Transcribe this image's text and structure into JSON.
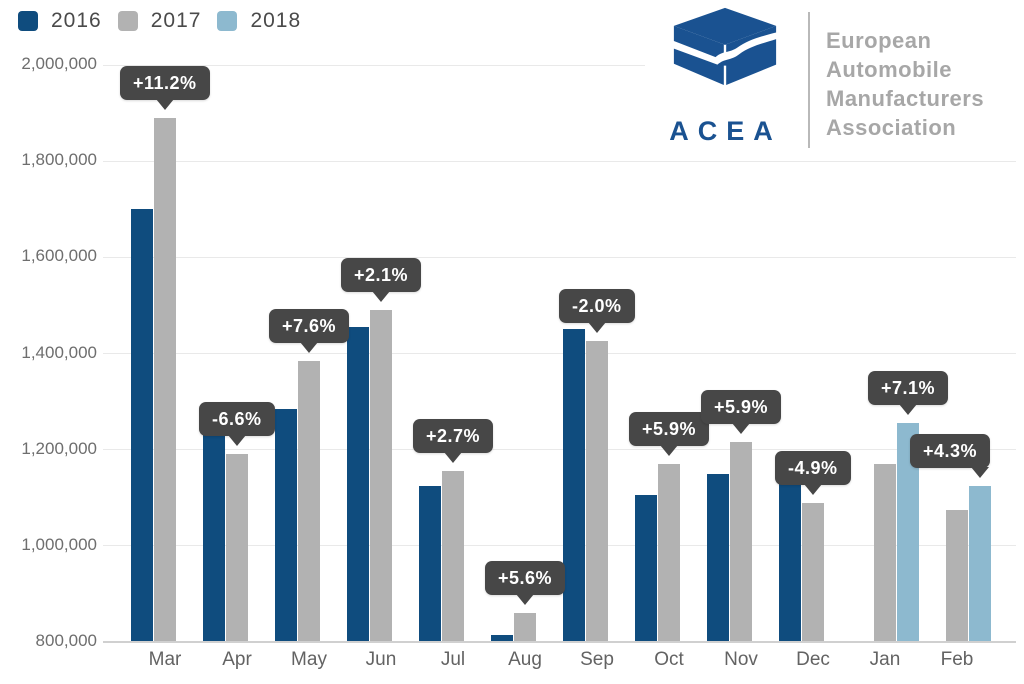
{
  "legend": {
    "items": [
      {
        "label": "2016",
        "color": "#0f4c7e"
      },
      {
        "label": "2017",
        "color": "#b2b2b2"
      },
      {
        "label": "2018",
        "color": "#8db9cf"
      }
    ]
  },
  "logo": {
    "acronym": "ACEA",
    "org_lines": [
      "European",
      "Automobile",
      "Manufacturers",
      "Association"
    ],
    "brand_color": "#1a5291",
    "text_color": "#a7a7a7"
  },
  "colors": {
    "bubble_bg": "#474747",
    "bubble_text": "#ffffff",
    "gridline": "#e9e9e9",
    "axis_line": "#d0d0d0",
    "tick_text": "#6e6e6e"
  },
  "chart_data": {
    "type": "bar",
    "categories": [
      "Mar",
      "Apr",
      "May",
      "Jun",
      "Jul",
      "Aug",
      "Sep",
      "Oct",
      "Nov",
      "Dec",
      "Jan",
      "Feb"
    ],
    "series": [
      {
        "name": "2016",
        "color": "#0f4c7e",
        "values": [
          1700000,
          1275000,
          1285000,
          1455000,
          1125000,
          815000,
          1450000,
          1105000,
          1150000,
          1145000,
          null,
          null
        ]
      },
      {
        "name": "2017",
        "color": "#b2b2b2",
        "values": [
          1890000,
          1190000,
          1385000,
          1490000,
          1155000,
          860000,
          1425000,
          1170000,
          1215000,
          1090000,
          1170000,
          1075000
        ]
      },
      {
        "name": "2018",
        "color": "#8db9cf",
        "values": [
          null,
          null,
          null,
          null,
          null,
          null,
          null,
          null,
          null,
          null,
          1255000,
          1125000
        ]
      }
    ],
    "annotations": [
      {
        "category": "Mar",
        "label": "+11.2%",
        "target_series": "2017"
      },
      {
        "category": "Apr",
        "label": "-6.6%",
        "target_series": "2017"
      },
      {
        "category": "May",
        "label": "+7.6%",
        "target_series": "2017"
      },
      {
        "category": "Jun",
        "label": "+2.1%",
        "target_series": "2017"
      },
      {
        "category": "Jul",
        "label": "+2.7%",
        "target_series": "2017"
      },
      {
        "category": "Aug",
        "label": "+5.6%",
        "target_series": "2017"
      },
      {
        "category": "Sep",
        "label": "-2.0%",
        "target_series": "2017"
      },
      {
        "category": "Oct",
        "label": "+5.9%",
        "target_series": "2017"
      },
      {
        "category": "Nov",
        "label": "+5.9%",
        "target_series": "2017"
      },
      {
        "category": "Dec",
        "label": "-4.9%",
        "target_series": "2017"
      },
      {
        "category": "Jan",
        "label": "+7.1%",
        "target_series": "2018"
      },
      {
        "category": "Feb",
        "label": "+4.3%",
        "target_series": "2018"
      }
    ],
    "ylim": [
      800000,
      2000000
    ],
    "yticks": [
      {
        "value": 800000,
        "label": "800,000"
      },
      {
        "value": 1000000,
        "label": "1,000,000"
      },
      {
        "value": 1200000,
        "label": "1,200,000"
      },
      {
        "value": 1400000,
        "label": "1,400,000"
      },
      {
        "value": 1600000,
        "label": "1,600,000"
      },
      {
        "value": 1800000,
        "label": "1,800,000"
      },
      {
        "value": 2000000,
        "label": "2,000,000"
      }
    ],
    "grid": true,
    "legend_position": "top-left"
  }
}
